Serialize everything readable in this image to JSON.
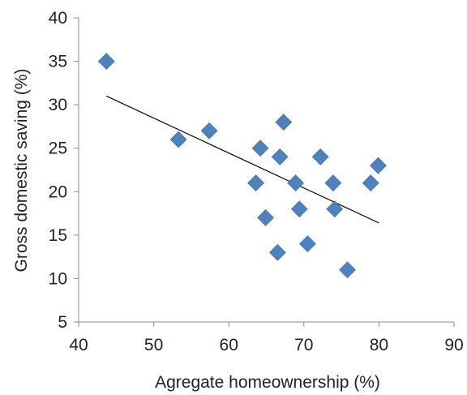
{
  "chart_data": {
    "type": "scatter",
    "title": "",
    "xlabel": "Agregate homeownership (%)",
    "ylabel": "Gross domestic saving (%)",
    "xlim": [
      40,
      90
    ],
    "ylim": [
      5,
      40
    ],
    "xticks": [
      "40",
      "50",
      "60",
      "70",
      "80",
      "90"
    ],
    "yticks": [
      "5",
      "10",
      "15",
      "20",
      "25",
      "30",
      "35",
      "40"
    ],
    "grid": false,
    "marker": "diamond",
    "marker_color": "#4F81BD",
    "trendline": {
      "type": "linear",
      "x": [
        43.7,
        80
      ],
      "y": [
        31.0,
        16.4
      ],
      "color": "#000000"
    },
    "points": [
      {
        "x": 43.7,
        "y": 35
      },
      {
        "x": 53.3,
        "y": 26
      },
      {
        "x": 57.4,
        "y": 27
      },
      {
        "x": 63.6,
        "y": 21
      },
      {
        "x": 64.2,
        "y": 25
      },
      {
        "x": 64.9,
        "y": 17
      },
      {
        "x": 66.5,
        "y": 13
      },
      {
        "x": 66.8,
        "y": 24
      },
      {
        "x": 67.3,
        "y": 28
      },
      {
        "x": 68.9,
        "y": 21
      },
      {
        "x": 69.4,
        "y": 18
      },
      {
        "x": 70.5,
        "y": 14
      },
      {
        "x": 72.2,
        "y": 24
      },
      {
        "x": 73.9,
        "y": 21
      },
      {
        "x": 74.1,
        "y": 18
      },
      {
        "x": 75.8,
        "y": 11
      },
      {
        "x": 78.9,
        "y": 21
      },
      {
        "x": 79.9,
        "y": 23
      }
    ]
  }
}
